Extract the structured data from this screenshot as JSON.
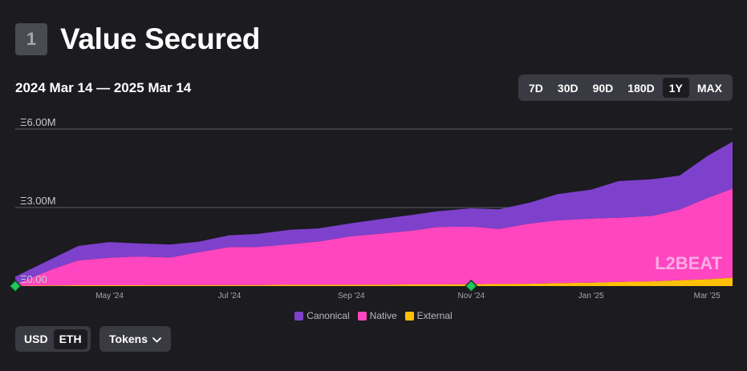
{
  "header": {
    "number": "1",
    "title": "Value Secured"
  },
  "range_label": "2024 Mar 14 — 2025 Mar 14",
  "timeframes": [
    {
      "label": "7D",
      "active": false
    },
    {
      "label": "30D",
      "active": false
    },
    {
      "label": "90D",
      "active": false
    },
    {
      "label": "180D",
      "active": false
    },
    {
      "label": "1Y",
      "active": true
    },
    {
      "label": "MAX",
      "active": false
    }
  ],
  "currency": {
    "usd": "USD",
    "eth": "ETH",
    "selected": "ETH"
  },
  "tokens_label": "Tokens",
  "watermark": "L2BEAT",
  "colors": {
    "canonical": "#7e41cc",
    "native": "#ff46c0",
    "external": "#ffc107",
    "marker": "#22c55e"
  },
  "chart_data": {
    "type": "area",
    "stacked": true,
    "x": [
      "2024-03-14",
      "2024-04-01",
      "2024-04-15",
      "2024-05-01",
      "2024-05-15",
      "2024-06-01",
      "2024-06-15",
      "2024-07-01",
      "2024-07-15",
      "2024-08-01",
      "2024-08-15",
      "2024-09-01",
      "2024-09-15",
      "2024-10-01",
      "2024-10-15",
      "2024-11-01",
      "2024-11-15",
      "2024-12-01",
      "2024-12-15",
      "2025-01-01",
      "2025-01-15",
      "2025-02-01",
      "2025-02-15",
      "2025-03-01",
      "2025-03-14"
    ],
    "series": [
      {
        "name": "External",
        "values": [
          0.01,
          0.02,
          0.03,
          0.03,
          0.03,
          0.04,
          0.04,
          0.04,
          0.04,
          0.05,
          0.05,
          0.05,
          0.05,
          0.06,
          0.06,
          0.07,
          0.08,
          0.09,
          0.11,
          0.13,
          0.16,
          0.18,
          0.22,
          0.26,
          0.32
        ]
      },
      {
        "name": "Native",
        "values": [
          0.05,
          0.6,
          0.95,
          1.05,
          1.1,
          1.05,
          1.25,
          1.45,
          1.45,
          1.55,
          1.65,
          1.85,
          1.95,
          2.05,
          2.2,
          2.2,
          2.1,
          2.3,
          2.4,
          2.45,
          2.45,
          2.5,
          2.7,
          3.1,
          3.4
        ]
      },
      {
        "name": "Canonical",
        "values": [
          0.3,
          0.4,
          0.55,
          0.6,
          0.5,
          0.5,
          0.4,
          0.45,
          0.5,
          0.55,
          0.5,
          0.5,
          0.55,
          0.6,
          0.6,
          0.7,
          0.75,
          0.8,
          1.0,
          1.1,
          1.4,
          1.4,
          1.3,
          1.6,
          1.8
        ]
      }
    ],
    "ylim": [
      0,
      6
    ],
    "yticks": [
      0,
      3,
      6
    ],
    "ytick_labels": [
      "Ξ0.00",
      "Ξ3.00M",
      "Ξ6.00M"
    ],
    "xtick_labels": [
      {
        "date": "2024-05-01",
        "label": "May '24"
      },
      {
        "date": "2024-07-01",
        "label": "Jul '24"
      },
      {
        "date": "2024-09-01",
        "label": "Sep '24"
      },
      {
        "date": "2024-11-01",
        "label": "Nov '24"
      },
      {
        "date": "2025-01-01",
        "label": "Jan '25"
      },
      {
        "date": "2025-03-01",
        "label": "Mar '25"
      }
    ],
    "markers": [
      "2024-03-14",
      "2024-11-01"
    ],
    "legend": [
      "Canonical",
      "Native",
      "External"
    ],
    "legend_position": "bottom"
  }
}
